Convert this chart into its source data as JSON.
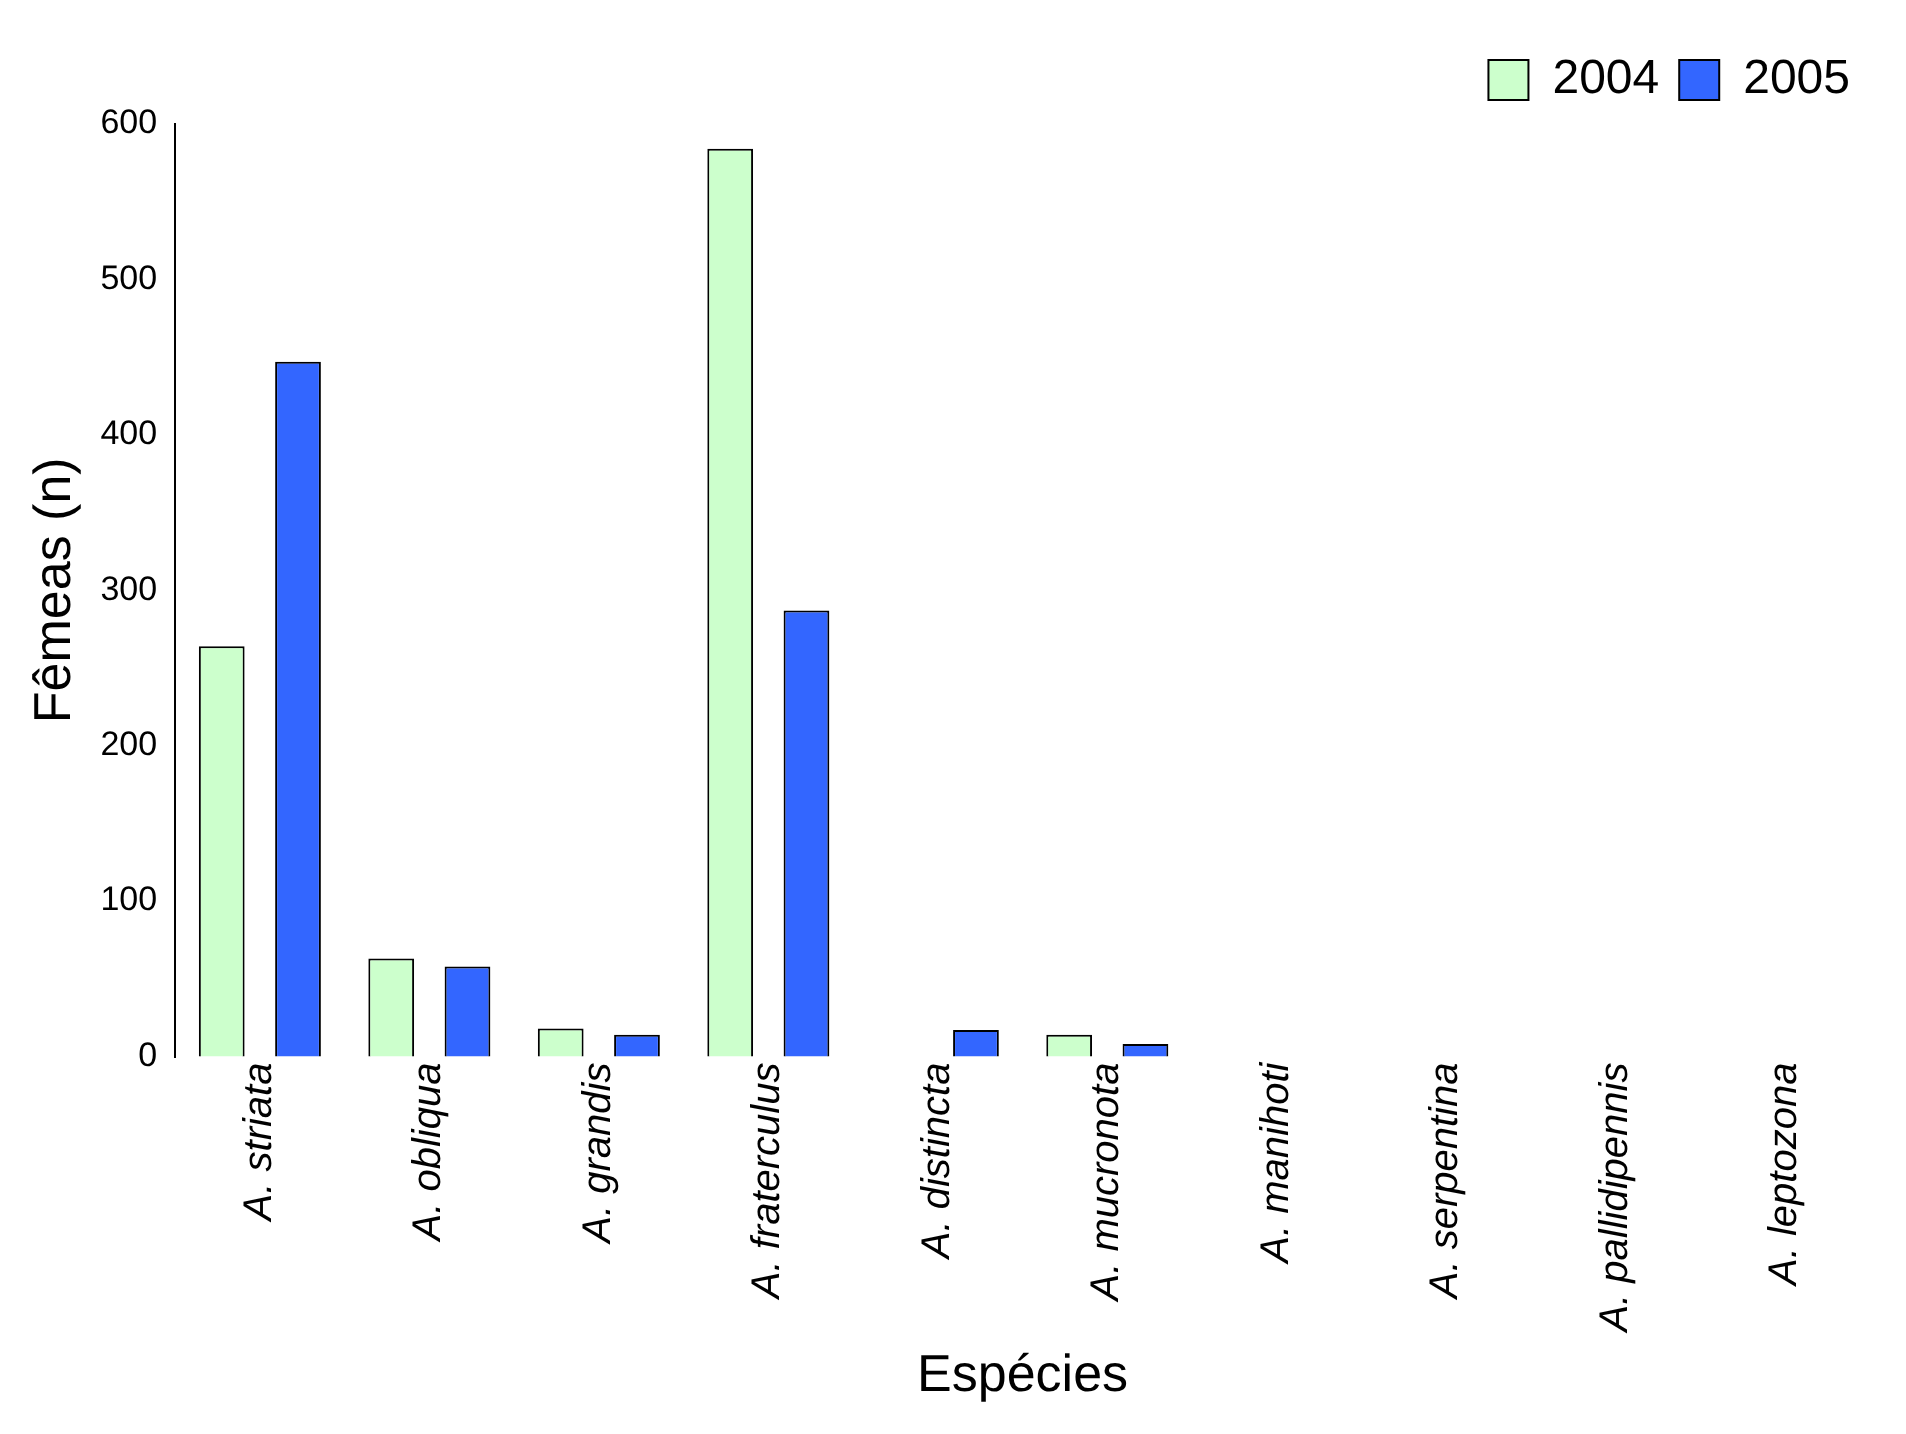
{
  "chart_data": {
    "type": "bar",
    "xlabel": "Espécies",
    "ylabel": "Fêmeas (n)",
    "categories": [
      "A. striata",
      "A. obliqua",
      "A. grandis",
      "A. fraterculus",
      "A. distincta",
      "A. mucronota",
      "A. manihoti",
      "A. serpentina",
      "A. pallidipennis",
      "A. leptozona"
    ],
    "series": [
      {
        "name": "2004",
        "color": "#ccffcc",
        "values": [
          264,
          63,
          18,
          584,
          0,
          14,
          0,
          0,
          0,
          0
        ]
      },
      {
        "name": "2005",
        "color": "#3366ff",
        "values": [
          447,
          58,
          14,
          287,
          17,
          8,
          0,
          0,
          0,
          0
        ]
      }
    ],
    "ylim": [
      0,
      600
    ],
    "yticks": [
      0,
      100,
      200,
      300,
      400,
      500,
      600
    ],
    "grid": false,
    "legend": "top right"
  }
}
